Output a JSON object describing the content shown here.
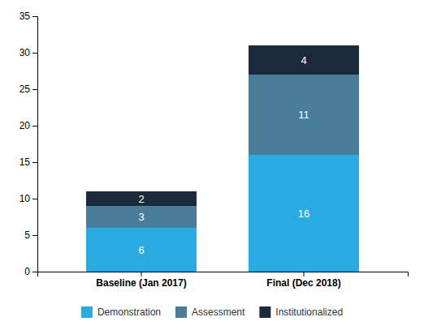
{
  "chart_data": {
    "type": "bar",
    "stacked": true,
    "categories": [
      "Baseline (Jan 2017)",
      "Final (Dec 2018)"
    ],
    "series": [
      {
        "name": "Demonstration",
        "color": "#29ABE2",
        "values": [
          6,
          16
        ]
      },
      {
        "name": "Assessment",
        "color": "#4A7D99",
        "values": [
          3,
          11
        ]
      },
      {
        "name": "Institutionalized",
        "color": "#1B2A3B",
        "values": [
          2,
          4
        ]
      }
    ],
    "ylim": [
      0,
      35
    ],
    "yticks": [
      0,
      5,
      10,
      15,
      20,
      25,
      30,
      35
    ],
    "data_labels": true,
    "legend": "bottom",
    "grid": false
  }
}
